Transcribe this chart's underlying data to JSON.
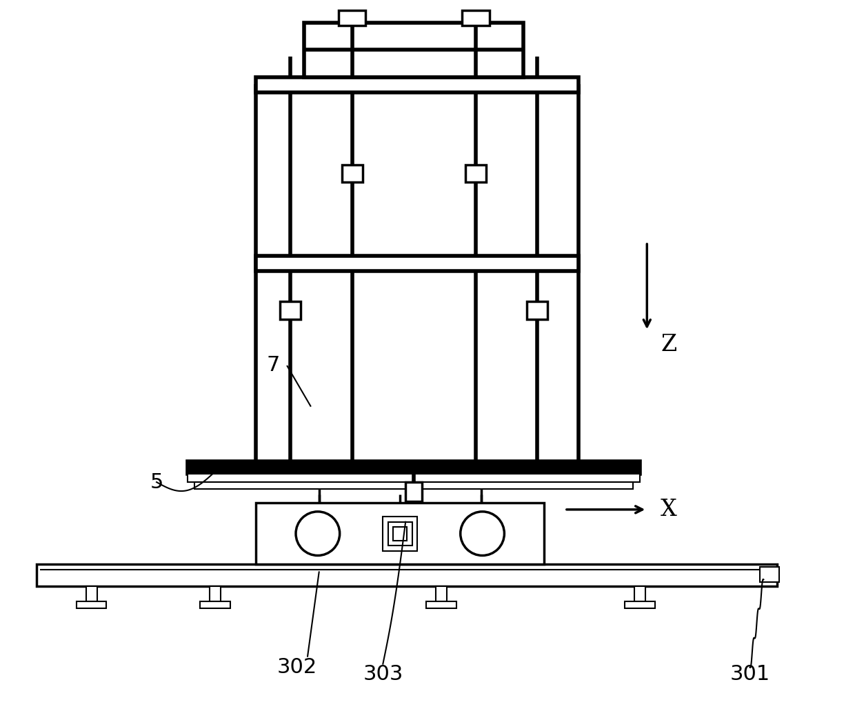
{
  "bg_color": "#ffffff",
  "lc": "#000000",
  "lw_thick": 4.0,
  "lw_med": 2.5,
  "lw_thin": 1.5,
  "fig_width": 12.4,
  "fig_height": 10.44
}
